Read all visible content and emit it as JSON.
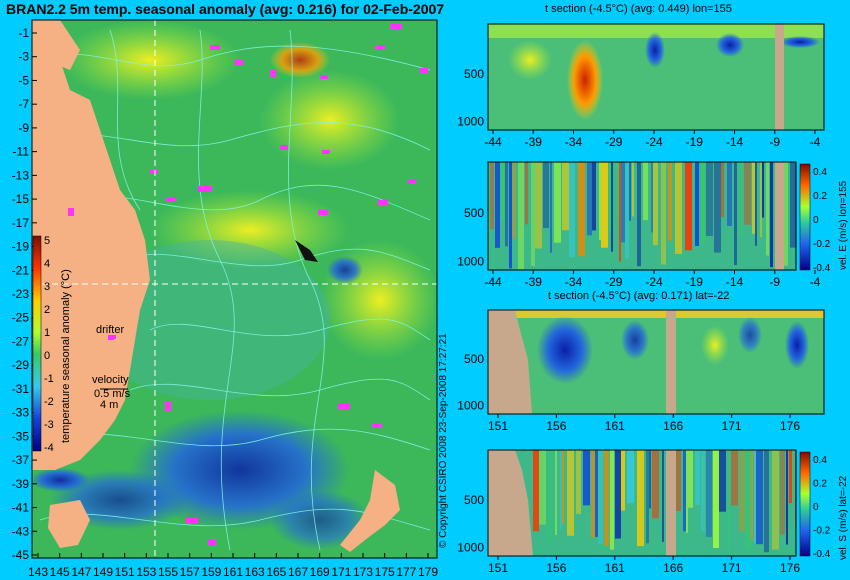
{
  "map": {
    "title": "BRAN2.2 5m temp. seasonal anomaly (avg: 0.216) for 02-Feb-2007",
    "lat_ticks": [
      "-1",
      "-3",
      "-5",
      "-7",
      "-9",
      "-11",
      "-13",
      "-15",
      "-17",
      "-19",
      "-21",
      "-23",
      "-25",
      "-27",
      "-29",
      "-31",
      "-33",
      "-35",
      "-37",
      "-39",
      "-41",
      "-43",
      "-45"
    ],
    "lon_ticks": [
      "143",
      "145",
      "147",
      "149",
      "151",
      "153",
      "155",
      "157",
      "159",
      "161",
      "163",
      "165",
      "167",
      "169",
      "171",
      "173",
      "175",
      "177",
      "179"
    ],
    "colorbar": {
      "label": "temperature seasonal anomaly (°C)",
      "ticks": [
        "5",
        "4",
        "3",
        "2",
        "1",
        "0",
        "-1",
        "-2",
        "-3",
        "-4"
      ]
    },
    "legend": {
      "drifter_label": "drifter",
      "velocity_label": "velocity",
      "velocity_value": "0.5 m/s",
      "velocity_value2": "4 m"
    }
  },
  "copyright": "© Copyright CSIRO 2008   23-Sep-2008 17:27:21",
  "panels": [
    {
      "title": "t section (-4.5°C) (avg: 0.449) lon=155",
      "y_ticks": [
        "500",
        "1000"
      ],
      "x_ticks": [
        "-44",
        "-39",
        "-34",
        "-29",
        "-24",
        "-19",
        "-14",
        "-9",
        "-4"
      ]
    },
    {
      "title": "",
      "y_ticks": [
        "500",
        "1000"
      ],
      "x_ticks": [
        "-44",
        "-39",
        "-34",
        "-29",
        "-24",
        "-19",
        "-14",
        "-9",
        "-4"
      ],
      "colorbar_label": "vel. E (m/s) lon=155",
      "colorbar_ticks": [
        "0.4",
        "0.2",
        "0",
        "-0.2",
        "-0.4"
      ]
    },
    {
      "title": "t section (-4.5°C) (avg: 0.171) lat=-22",
      "y_ticks": [
        "500",
        "1000"
      ],
      "x_ticks": [
        "151",
        "156",
        "161",
        "166",
        "171",
        "176"
      ]
    },
    {
      "title": "",
      "y_ticks": [
        "500",
        "1000"
      ],
      "x_ticks": [
        "151",
        "156",
        "161",
        "166",
        "171",
        "176"
      ],
      "colorbar_label": "vel. S (m/s) lat=-22",
      "colorbar_ticks": [
        "0.4",
        "0.2",
        "0",
        "-0.2",
        "-0.4"
      ]
    }
  ],
  "colors": {
    "background": "#00ccff",
    "land": "#f5b183",
    "section_land": "#c8a88c",
    "ocean_base": "#3cb85a",
    "contour": "#7ff5e6",
    "drifter": "#ff33ff"
  }
}
